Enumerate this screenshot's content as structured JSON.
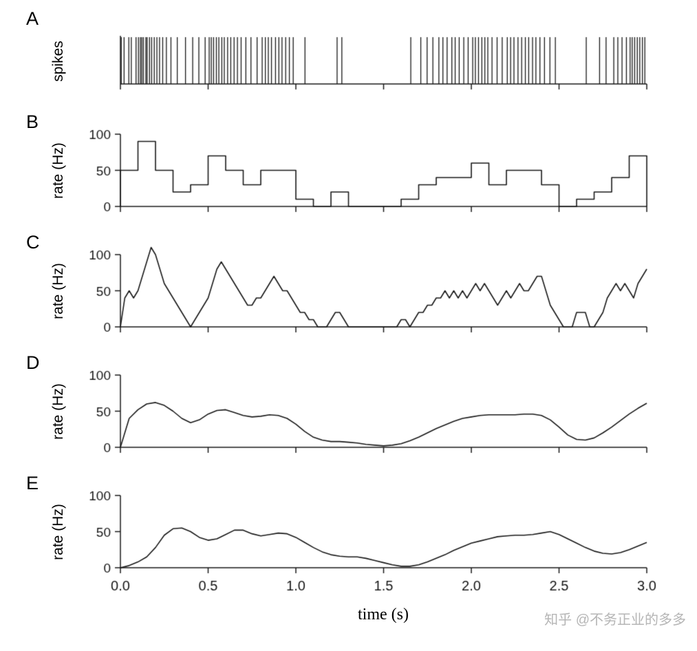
{
  "figure": {
    "line_color": "#161616",
    "background": "#ffffff",
    "watermark": "知乎 @不务正业的多多",
    "watermark_color": "#b5b5b5"
  },
  "panels": [
    {
      "label": "A",
      "ylabel": "spikes"
    },
    {
      "label": "B",
      "ylabel": "rate (Hz)"
    },
    {
      "label": "C",
      "ylabel": "rate (Hz)"
    },
    {
      "label": "D",
      "ylabel": "rate (Hz)"
    },
    {
      "label": "E",
      "ylabel": "rate (Hz)"
    }
  ],
  "x_axis": {
    "label": "time (s)",
    "ticks": [
      0,
      0.5,
      1,
      1.5,
      2,
      2.5,
      3
    ],
    "tick_labels": [
      "0.0",
      "0.5",
      "1.0",
      "1.5",
      "2.0",
      "2.5",
      "3.0"
    ],
    "xlim": [
      0,
      3
    ]
  },
  "chart_data": [
    {
      "panel": "A",
      "type": "event",
      "ylabel": "spikes",
      "xlim": [
        0,
        3
      ],
      "spike_times": [
        0.005,
        0.021,
        0.048,
        0.062,
        0.089,
        0.103,
        0.114,
        0.122,
        0.131,
        0.145,
        0.152,
        0.166,
        0.178,
        0.193,
        0.208,
        0.223,
        0.241,
        0.262,
        0.288,
        0.324,
        0.371,
        0.412,
        0.447,
        0.483,
        0.506,
        0.518,
        0.531,
        0.547,
        0.561,
        0.578,
        0.592,
        0.611,
        0.629,
        0.648,
        0.667,
        0.688,
        0.715,
        0.744,
        0.779,
        0.808,
        0.826,
        0.843,
        0.861,
        0.884,
        0.903,
        0.921,
        0.942,
        0.963,
        0.985,
        1.052,
        1.235,
        1.262,
        1.655,
        1.712,
        1.748,
        1.781,
        1.815,
        1.838,
        1.862,
        1.889,
        1.908,
        1.931,
        1.957,
        1.982,
        2.008,
        2.023,
        2.041,
        2.06,
        2.077,
        2.094,
        2.118,
        2.147,
        2.176,
        2.205,
        2.224,
        2.243,
        2.266,
        2.287,
        2.308,
        2.327,
        2.349,
        2.368,
        2.391,
        2.417,
        2.448,
        2.479,
        2.655,
        2.731,
        2.768,
        2.812,
        2.835,
        2.859,
        2.884,
        2.905,
        2.917,
        2.931,
        2.946,
        2.96,
        2.975,
        2.989
      ]
    },
    {
      "panel": "B",
      "type": "step",
      "ylabel": "rate (Hz)",
      "xlim": [
        0,
        3
      ],
      "ylim": [
        0,
        110
      ],
      "yticks": [
        0,
        50,
        100
      ],
      "bin_width": 0.1,
      "values": [
        50,
        90,
        50,
        20,
        30,
        70,
        50,
        30,
        50,
        50,
        10,
        0,
        20,
        0,
        0,
        0,
        10,
        30,
        40,
        40,
        60,
        30,
        50,
        50,
        30,
        0,
        10,
        20,
        40,
        70
      ]
    },
    {
      "panel": "C",
      "type": "line",
      "ylabel": "rate (Hz)",
      "xlim": [
        0,
        3
      ],
      "ylim": [
        0,
        115
      ],
      "yticks": [
        0,
        50,
        100
      ],
      "dx": 0.025,
      "values": [
        0,
        40,
        50,
        40,
        50,
        70,
        90,
        110,
        100,
        80,
        60,
        50,
        40,
        30,
        20,
        10,
        0,
        10,
        20,
        30,
        40,
        60,
        80,
        90,
        80,
        70,
        60,
        50,
        40,
        30,
        30,
        40,
        40,
        50,
        60,
        70,
        60,
        50,
        50,
        40,
        30,
        20,
        20,
        10,
        10,
        0,
        0,
        0,
        10,
        20,
        20,
        10,
        0,
        0,
        0,
        0,
        0,
        0,
        0,
        0,
        0,
        0,
        0,
        0,
        10,
        10,
        0,
        10,
        20,
        20,
        30,
        30,
        40,
        40,
        50,
        40,
        50,
        40,
        50,
        40,
        50,
        60,
        50,
        60,
        50,
        40,
        30,
        40,
        50,
        40,
        50,
        60,
        50,
        50,
        60,
        70,
        70,
        50,
        30,
        20,
        10,
        0,
        0,
        0,
        20,
        20,
        20,
        0,
        0,
        10,
        20,
        40,
        50,
        60,
        50,
        60,
        50,
        40,
        60,
        70,
        80
      ]
    },
    {
      "panel": "D",
      "type": "line",
      "ylabel": "rate (Hz)",
      "xlim": [
        0,
        3
      ],
      "ylim": [
        0,
        110
      ],
      "yticks": [
        0,
        50,
        100
      ],
      "dx": 0.05,
      "values": [
        0,
        40,
        52,
        60,
        62,
        58,
        50,
        40,
        34,
        38,
        46,
        51,
        52,
        48,
        44,
        42,
        43,
        45,
        44,
        40,
        32,
        22,
        14,
        10,
        8,
        8,
        7,
        6,
        4,
        3,
        2,
        3,
        5,
        9,
        14,
        20,
        26,
        31,
        36,
        40,
        42,
        44,
        45,
        45,
        45,
        45,
        46,
        46,
        44,
        38,
        28,
        17,
        11,
        10,
        13,
        20,
        28,
        37,
        46,
        54,
        61
      ]
    },
    {
      "panel": "E",
      "type": "line",
      "ylabel": "rate (Hz)",
      "xlim": [
        0,
        3
      ],
      "ylim": [
        0,
        110
      ],
      "yticks": [
        0,
        50,
        100
      ],
      "dx": 0.05,
      "show_x_tick_labels": true,
      "values": [
        0,
        3,
        8,
        15,
        28,
        45,
        54,
        55,
        50,
        42,
        38,
        40,
        46,
        52,
        52,
        47,
        44,
        46,
        48,
        47,
        42,
        35,
        28,
        22,
        18,
        16,
        15,
        15,
        13,
        10,
        7,
        4,
        2,
        2,
        4,
        8,
        13,
        18,
        24,
        29,
        34,
        37,
        40,
        43,
        44,
        45,
        45,
        46,
        48,
        50,
        46,
        40,
        34,
        28,
        23,
        20,
        19,
        21,
        25,
        30,
        35
      ]
    }
  ]
}
